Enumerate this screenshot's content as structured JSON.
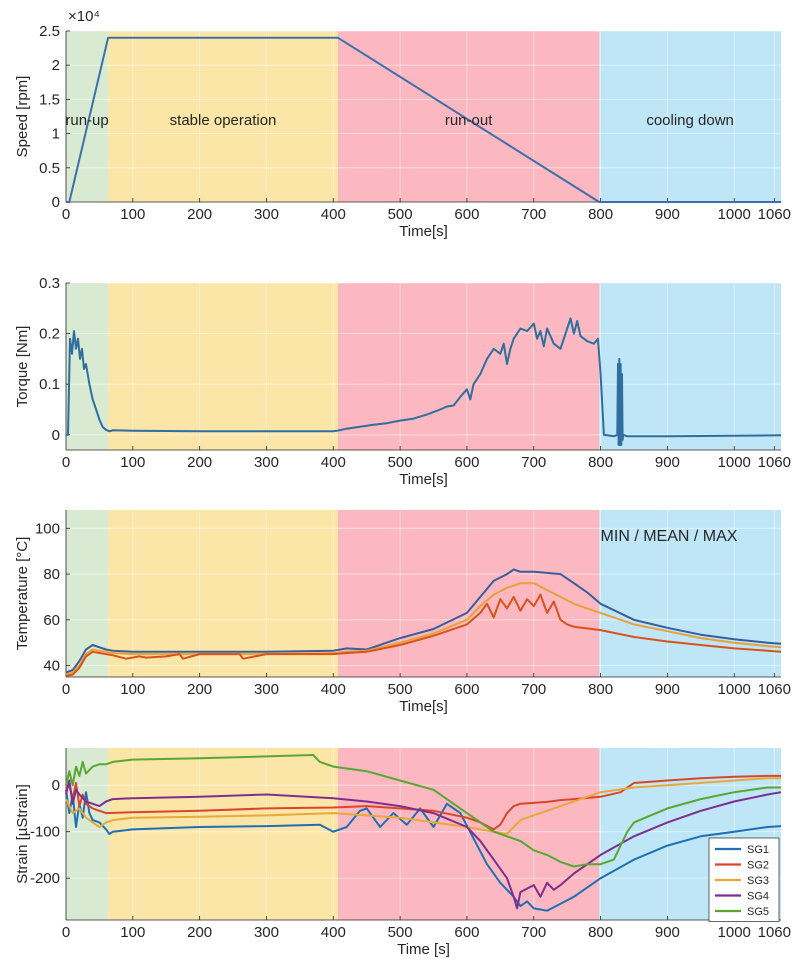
{
  "figure": {
    "shared_xlim": [
      0,
      1070
    ]
  },
  "phases": [
    {
      "name": "run-up",
      "start": 0,
      "end": 63,
      "fill": "#d9ead3",
      "text_color": "#3aa644"
    },
    {
      "name": "stable operation",
      "start": 63,
      "end": 407,
      "fill": "#fbe6a8",
      "text_color": "#8c6d1a"
    },
    {
      "name": "run-out",
      "start": 407,
      "end": 798,
      "fill": "#fbb8c0",
      "text_color": "#e8222f"
    },
    {
      "name": "cooling down",
      "start": 798,
      "end": 1070,
      "fill": "#bfe6f7",
      "text_color": "#2f86c6"
    }
  ],
  "chart_data": [
    {
      "type": "line",
      "id": "speed",
      "title": "",
      "xlabel": "Time[s]",
      "ylabel": "Speed [rpm]",
      "exponent_label": "×10⁴",
      "xlim": [
        0,
        1070
      ],
      "ylim": [
        0,
        2.5
      ],
      "xticks": [
        100,
        200,
        300,
        400,
        500,
        600,
        700,
        800,
        900,
        1000,
        1060
      ],
      "yticks": [
        0,
        0.5,
        1,
        1.5,
        2,
        2.5
      ],
      "ytick_labels": [
        "0",
        "0.5",
        "1",
        "1.5",
        "2",
        "2.5"
      ],
      "phase_label_value": 1.2,
      "series": [
        {
          "name": "Speed",
          "color": "#3f6fa8",
          "x": [
            0,
            5,
            63,
            407,
            798,
            1070
          ],
          "y": [
            0,
            0,
            2.4,
            2.4,
            0,
            0
          ]
        }
      ]
    },
    {
      "type": "line",
      "id": "torque",
      "title": "",
      "xlabel": "Time[s]",
      "ylabel": "Torque [Nm]",
      "xlim": [
        0,
        1070
      ],
      "ylim": [
        -0.03,
        0.3
      ],
      "xticks": [
        100,
        200,
        300,
        400,
        500,
        600,
        700,
        800,
        900,
        1000,
        1060
      ],
      "yticks": [
        0,
        0.1,
        0.2,
        0.3
      ],
      "ytick_labels": [
        "0",
        "0.1",
        "0.2",
        "0.3"
      ],
      "series": [
        {
          "name": "Torque",
          "color": "#2f6e9e",
          "x": [
            0,
            3,
            6,
            9,
            12,
            15,
            18,
            21,
            24,
            27,
            30,
            35,
            40,
            45,
            50,
            55,
            60,
            65,
            70,
            100,
            200,
            300,
            400,
            405,
            420,
            440,
            460,
            480,
            500,
            520,
            540,
            560,
            570,
            580,
            590,
            600,
            605,
            610,
            620,
            630,
            640,
            650,
            655,
            660,
            665,
            670,
            675,
            680,
            690,
            700,
            705,
            710,
            715,
            720,
            730,
            740,
            750,
            755,
            760,
            765,
            770,
            780,
            790,
            796,
            800,
            805,
            820,
            825,
            826,
            827,
            828,
            829,
            830,
            831,
            832,
            833,
            834,
            840,
            900,
            1000,
            1070
          ],
          "y": [
            0,
            0,
            0.19,
            0.16,
            0.205,
            0.17,
            0.19,
            0.15,
            0.17,
            0.13,
            0.14,
            0.1,
            0.07,
            0.05,
            0.03,
            0.015,
            0.01,
            0.007,
            0.009,
            0.008,
            0.007,
            0.007,
            0.007,
            0.008,
            0.012,
            0.016,
            0.02,
            0.023,
            0.028,
            0.032,
            0.04,
            0.05,
            0.056,
            0.058,
            0.075,
            0.09,
            0.07,
            0.1,
            0.12,
            0.15,
            0.17,
            0.16,
            0.18,
            0.14,
            0.17,
            0.19,
            0.2,
            0.21,
            0.205,
            0.22,
            0.19,
            0.205,
            0.175,
            0.21,
            0.18,
            0.17,
            0.21,
            0.23,
            0.2,
            0.225,
            0.195,
            0.185,
            0.18,
            0.19,
            0.12,
            0.0,
            -0.003,
            0.0,
            0.14,
            -0.02,
            0.15,
            -0.02,
            0.14,
            -0.02,
            0.12,
            -0.01,
            0.0,
            -0.003,
            -0.003,
            -0.002,
            -0.001
          ]
        }
      ]
    },
    {
      "type": "line",
      "id": "temperature",
      "title": "",
      "xlabel": "Time[s]",
      "ylabel": "Temperature [°C]",
      "annotation": "MIN / MEAN / MAX",
      "xlim": [
        0,
        1070
      ],
      "ylim": [
        35,
        108
      ],
      "xticks": [
        100,
        200,
        300,
        400,
        500,
        600,
        700,
        800,
        900,
        1000,
        1060
      ],
      "yticks": [
        40,
        60,
        80,
        100
      ],
      "ytick_labels": [
        "40",
        "60",
        "80",
        "100"
      ],
      "series": [
        {
          "name": "MAX",
          "color": "#3a5d9c",
          "x": [
            0,
            10,
            20,
            30,
            40,
            50,
            60,
            70,
            100,
            200,
            300,
            400,
            420,
            450,
            500,
            550,
            600,
            620,
            640,
            660,
            670,
            680,
            700,
            720,
            740,
            760,
            780,
            800,
            850,
            900,
            950,
            1000,
            1050,
            1070
          ],
          "y": [
            37,
            38,
            42,
            47,
            49,
            48,
            47,
            46.5,
            46,
            46,
            46,
            46.5,
            47.5,
            47,
            52,
            56,
            63,
            70,
            77,
            80,
            82,
            81,
            81,
            80.5,
            80,
            76,
            72,
            67,
            60,
            56.5,
            53.5,
            51.5,
            50,
            49.5
          ]
        },
        {
          "name": "MEAN",
          "color": "#e8a13a",
          "x": [
            0,
            10,
            20,
            30,
            40,
            50,
            60,
            70,
            100,
            200,
            300,
            400,
            420,
            450,
            500,
            550,
            600,
            620,
            640,
            660,
            680,
            700,
            720,
            740,
            760,
            780,
            800,
            850,
            900,
            950,
            1000,
            1050,
            1070
          ],
          "y": [
            36,
            37,
            40,
            45,
            47,
            46.5,
            46,
            45.5,
            45,
            45,
            45,
            45.5,
            46,
            46.5,
            50,
            54,
            60,
            66,
            71,
            74,
            76,
            76,
            73,
            70,
            67,
            65,
            63,
            58,
            55,
            52,
            50,
            48.5,
            48
          ]
        },
        {
          "name": "MIN",
          "color": "#d9521d",
          "x": [
            0,
            10,
            20,
            30,
            40,
            50,
            60,
            70,
            90,
            110,
            120,
            150,
            170,
            175,
            200,
            260,
            265,
            300,
            350,
            400,
            420,
            450,
            500,
            550,
            600,
            620,
            630,
            640,
            650,
            660,
            670,
            680,
            690,
            700,
            710,
            720,
            730,
            740,
            750,
            760,
            800,
            850,
            900,
            950,
            1000,
            1050,
            1070
          ],
          "y": [
            35.5,
            36,
            39,
            44,
            46,
            45.5,
            45,
            44.5,
            43,
            44,
            43.5,
            44,
            45,
            43,
            45,
            45,
            43,
            45,
            45,
            45,
            45.5,
            46,
            49,
            53,
            58,
            63,
            67,
            61,
            69,
            65,
            70,
            64,
            69,
            66,
            71,
            63,
            68,
            60,
            58,
            57,
            55.5,
            52.5,
            50.5,
            49,
            47.5,
            46.5,
            46
          ]
        }
      ]
    },
    {
      "type": "line",
      "id": "strain",
      "title": "",
      "xlabel": "Time [s]",
      "ylabel": "Strain [µStrain]",
      "xlim": [
        0,
        1070
      ],
      "ylim": [
        -290,
        80
      ],
      "xticks": [
        100,
        200,
        300,
        400,
        500,
        600,
        700,
        800,
        900,
        1000,
        1060
      ],
      "yticks": [
        -200,
        -100,
        0
      ],
      "ytick_labels": [
        "-200",
        "-100",
        "0"
      ],
      "legend_position": "bottom-right",
      "series": [
        {
          "name": "SG1",
          "color": "#1f6fb2",
          "x": [
            0,
            5,
            10,
            15,
            20,
            25,
            30,
            35,
            40,
            50,
            60,
            65,
            70,
            100,
            200,
            300,
            380,
            400,
            420,
            440,
            450,
            470,
            490,
            510,
            530,
            550,
            570,
            590,
            610,
            630,
            650,
            670,
            680,
            690,
            700,
            720,
            740,
            760,
            800,
            850,
            900,
            950,
            1000,
            1050,
            1070
          ],
          "y": [
            -10,
            -60,
            -20,
            -90,
            -40,
            -70,
            -15,
            -60,
            -75,
            -80,
            -95,
            -105,
            -100,
            -95,
            -90,
            -88,
            -85,
            -100,
            -90,
            -55,
            -50,
            -90,
            -60,
            -85,
            -50,
            -90,
            -40,
            -60,
            -115,
            -170,
            -210,
            -240,
            -260,
            -250,
            -265,
            -270,
            -255,
            -240,
            -200,
            -160,
            -130,
            -110,
            -100,
            -90,
            -88
          ]
        },
        {
          "name": "SG2",
          "color": "#d9462a",
          "x": [
            0,
            5,
            10,
            15,
            20,
            25,
            30,
            40,
            50,
            60,
            100,
            200,
            300,
            400,
            450,
            500,
            550,
            600,
            620,
            640,
            650,
            660,
            670,
            680,
            700,
            720,
            740,
            760,
            800,
            830,
            850,
            900,
            950,
            1000,
            1050,
            1070
          ],
          "y": [
            -10,
            0,
            -30,
            5,
            -45,
            -20,
            -40,
            -50,
            -55,
            -60,
            -58,
            -55,
            -50,
            -48,
            -45,
            -50,
            -55,
            -70,
            -80,
            -95,
            -85,
            -60,
            -45,
            -40,
            -38,
            -36,
            -32,
            -30,
            -25,
            -15,
            5,
            10,
            15,
            18,
            20,
            20
          ]
        },
        {
          "name": "SG3",
          "color": "#e8a83a",
          "x": [
            0,
            10,
            20,
            30,
            40,
            50,
            60,
            70,
            100,
            200,
            300,
            400,
            450,
            500,
            550,
            600,
            620,
            640,
            660,
            670,
            680,
            690,
            700,
            720,
            740,
            760,
            780,
            800,
            850,
            900,
            950,
            1000,
            1050,
            1070
          ],
          "y": [
            -30,
            -60,
            -50,
            -70,
            -80,
            -90,
            -80,
            -75,
            -70,
            -68,
            -65,
            -60,
            -65,
            -70,
            -80,
            -90,
            -95,
            -100,
            -105,
            -90,
            -75,
            -70,
            -65,
            -55,
            -45,
            -35,
            -25,
            -15,
            -5,
            0,
            5,
            10,
            15,
            15
          ]
        },
        {
          "name": "SG4",
          "color": "#7e2f8e",
          "x": [
            0,
            5,
            10,
            15,
            20,
            30,
            40,
            50,
            60,
            70,
            100,
            200,
            300,
            400,
            450,
            500,
            550,
            600,
            620,
            640,
            660,
            670,
            675,
            680,
            700,
            710,
            720,
            730,
            740,
            760,
            800,
            850,
            900,
            950,
            1000,
            1050,
            1070
          ],
          "y": [
            -20,
            10,
            -40,
            -10,
            -20,
            -35,
            -40,
            -45,
            -35,
            -30,
            -28,
            -25,
            -20,
            -28,
            -35,
            -45,
            -60,
            -90,
            -120,
            -160,
            -200,
            -240,
            -265,
            -230,
            -215,
            -240,
            -210,
            -225,
            -215,
            -190,
            -150,
            -110,
            -80,
            -55,
            -35,
            -20,
            -15
          ]
        },
        {
          "name": "SG5",
          "color": "#5aa632",
          "x": [
            0,
            5,
            10,
            15,
            20,
            25,
            30,
            40,
            50,
            60,
            70,
            100,
            200,
            300,
            370,
            380,
            400,
            450,
            500,
            550,
            600,
            640,
            680,
            700,
            720,
            740,
            760,
            780,
            800,
            820,
            830,
            840,
            850,
            900,
            950,
            1000,
            1050,
            1070
          ],
          "y": [
            0,
            30,
            0,
            40,
            20,
            50,
            25,
            40,
            45,
            45,
            50,
            55,
            58,
            62,
            65,
            50,
            40,
            30,
            10,
            -10,
            -60,
            -100,
            -120,
            -140,
            -150,
            -165,
            -175,
            -170,
            -170,
            -160,
            -130,
            -100,
            -80,
            -50,
            -30,
            -15,
            -5,
            -5
          ]
        }
      ]
    }
  ]
}
